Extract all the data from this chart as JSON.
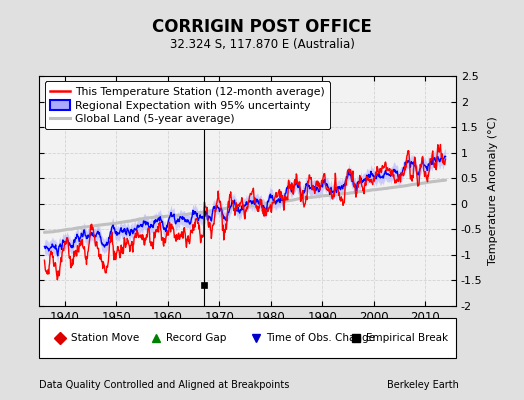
{
  "title": "CORRIGIN POST OFFICE",
  "subtitle": "32.324 S, 117.870 E (Australia)",
  "ylabel": "Temperature Anomaly (°C)",
  "xlabel_left": "Data Quality Controlled and Aligned at Breakpoints",
  "xlabel_right": "Berkeley Earth",
  "ylim": [
    -2.0,
    2.5
  ],
  "yticks": [
    -2,
    -1.5,
    -1,
    -0.5,
    0,
    0.5,
    1,
    1.5,
    2,
    2.5
  ],
  "xlim": [
    1935,
    2016
  ],
  "xticks": [
    1940,
    1950,
    1960,
    1970,
    1980,
    1990,
    2000,
    2010
  ],
  "bg_color": "#e0e0e0",
  "plot_bg_color": "#f2f2f2",
  "station_color": "#ff0000",
  "regional_color": "#0000ff",
  "regional_fill_color": "#aaaaff",
  "global_color": "#c0c0c0",
  "empirical_break_x": 1967.0,
  "empirical_break_y": -1.58,
  "vertical_line_x": 1967.0,
  "legend_items": [
    {
      "label": "This Temperature Station (12-month average)",
      "color": "#ff0000",
      "lw": 1.5
    },
    {
      "label": "Regional Expectation with 95% uncertainty",
      "color": "#0000ff",
      "lw": 1.5
    },
    {
      "label": "Global Land (5-year average)",
      "color": "#c0c0c0",
      "lw": 2.5
    }
  ],
  "marker_items": [
    {
      "label": "Station Move",
      "marker": "D",
      "color": "#dd0000"
    },
    {
      "label": "Record Gap",
      "marker": "^",
      "color": "#008000"
    },
    {
      "label": "Time of Obs. Change",
      "marker": "v",
      "color": "#0000cc"
    },
    {
      "label": "Empirical Break",
      "marker": "s",
      "color": "#000000"
    }
  ]
}
